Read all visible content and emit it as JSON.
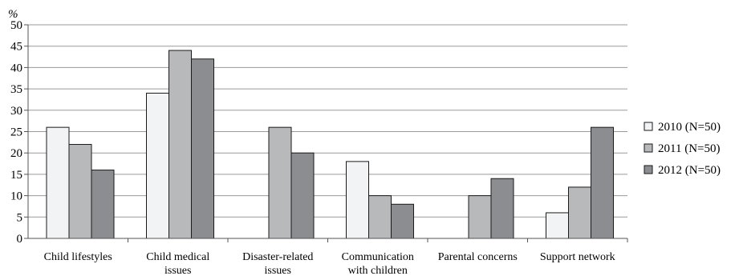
{
  "chart_data": {
    "type": "bar",
    "ylabel": "%",
    "ylim": [
      0,
      50
    ],
    "ytick_step": 5,
    "grid": true,
    "legend_position": "right",
    "categories": [
      [
        "Child lifestyles"
      ],
      [
        "Child medical",
        "issues"
      ],
      [
        "Disaster-related",
        "issues"
      ],
      [
        "Communication",
        "with children"
      ],
      [
        "Parental concerns"
      ],
      [
        "Support network"
      ]
    ],
    "series": [
      {
        "name": "2010 (N=50)",
        "color": "#f2f3f5",
        "values": [
          26,
          34,
          0,
          18,
          0,
          6
        ]
      },
      {
        "name": "2011 (N=50)",
        "color": "#b8b9bb",
        "values": [
          22,
          44,
          26,
          10,
          10,
          12
        ]
      },
      {
        "name": "2012 (N=50)",
        "color": "#8c8d90",
        "values": [
          16,
          42,
          20,
          8,
          14,
          26
        ]
      }
    ]
  }
}
